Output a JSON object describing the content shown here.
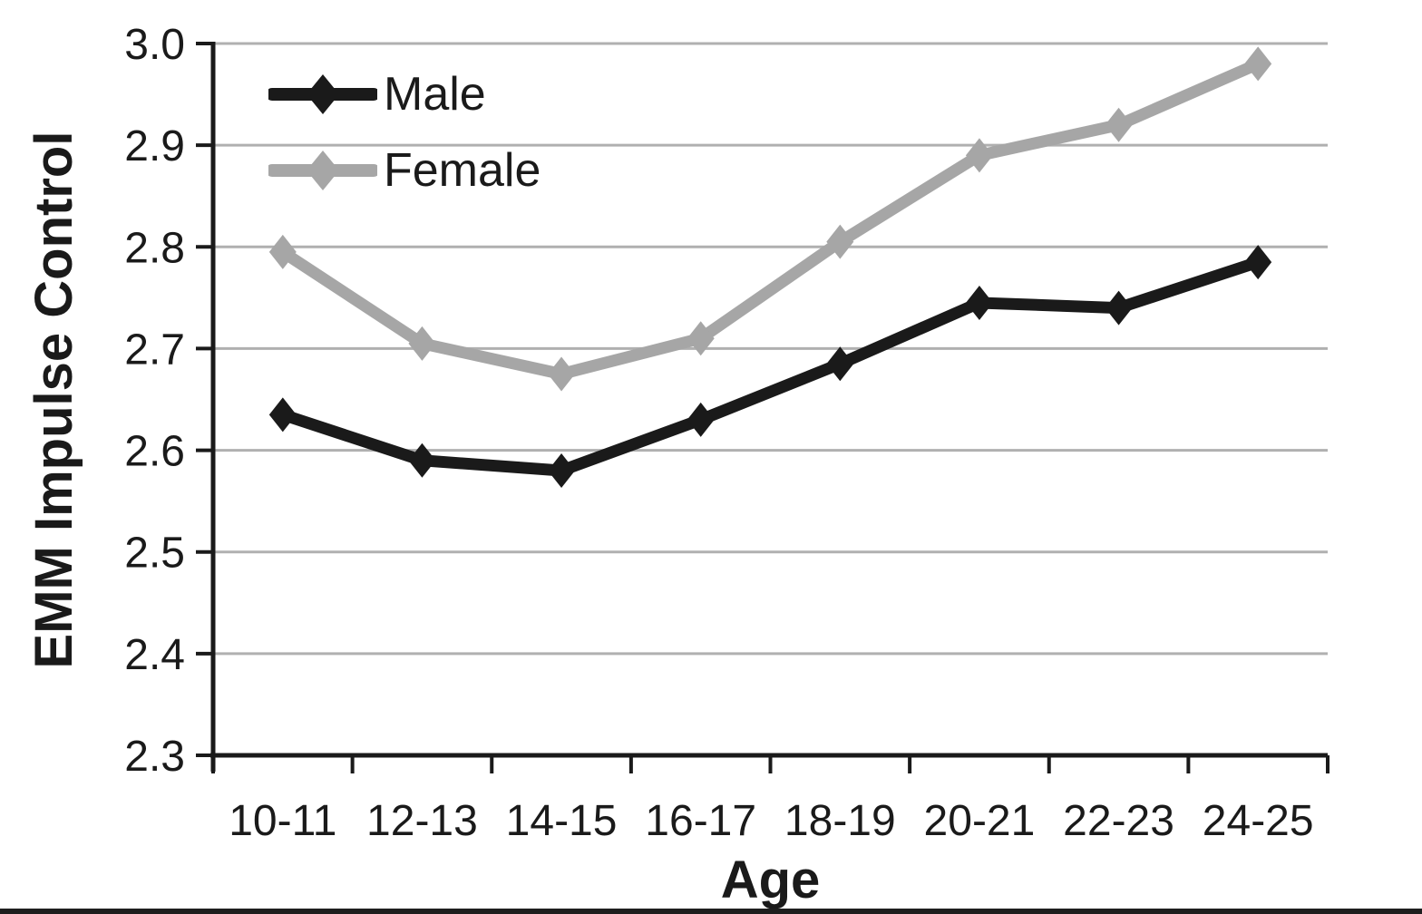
{
  "chart_data": {
    "type": "line",
    "xlabel": "Age",
    "ylabel": "EMM Impulse Control",
    "categories": [
      "10-11",
      "12-13",
      "14-15",
      "16-17",
      "18-19",
      "20-21",
      "22-23",
      "24-25"
    ],
    "series": [
      {
        "name": "Male",
        "color": "#1a1a1a",
        "marker": "diamond",
        "values": [
          2.635,
          2.59,
          2.58,
          2.63,
          2.685,
          2.745,
          2.74,
          2.785
        ]
      },
      {
        "name": "Female",
        "color": "#a6a6a6",
        "marker": "diamond",
        "values": [
          2.795,
          2.705,
          2.675,
          2.71,
          2.805,
          2.89,
          2.92,
          2.98
        ]
      }
    ],
    "ylim": [
      2.3,
      3.0
    ],
    "ytick_step": 0.1,
    "ytick_labels": [
      "2.3",
      "2.4",
      "2.5",
      "2.6",
      "2.7",
      "2.8",
      "2.9",
      "3.0"
    ],
    "grid": "horizontal",
    "gridline_color": "#b0b0b0",
    "axis_color": "#1a1a1a",
    "legend_position": "top-left-inside"
  }
}
